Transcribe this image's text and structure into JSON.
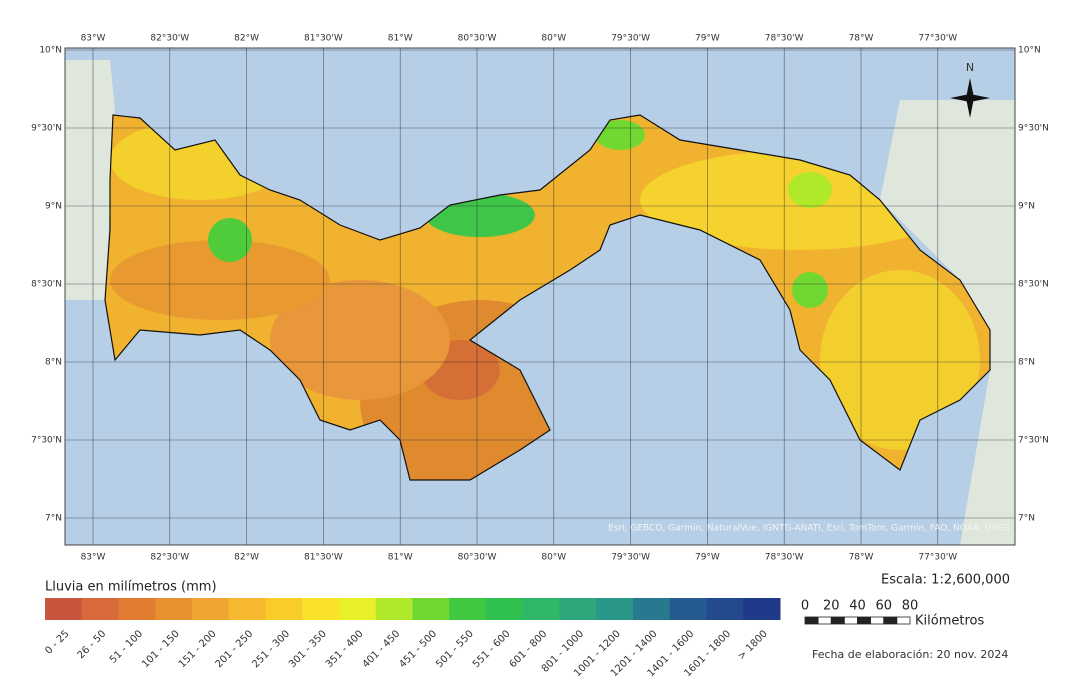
{
  "map": {
    "lon_labels": [
      "83°W",
      "82°30'W",
      "82°W",
      "81°30'W",
      "81°W",
      "80°30'W",
      "80°W",
      "79°30'W",
      "79°W",
      "78°30'W",
      "78°W",
      "77°30'W"
    ],
    "lat_labels": [
      "10°N",
      "9°30'N",
      "9°N",
      "8°30'N",
      "8°N",
      "7°30'N",
      "7°N"
    ],
    "north": "N",
    "attribution": "Esri, GEBCO, Garmin, NaturalVue, IGNTG-ANATI, Esri, TomTom, Garmin, FAO, NOAA, USGS"
  },
  "legend": {
    "title": "Lluvia en milímetros (mm)",
    "classes": [
      {
        "label": "0 - 25",
        "color": "#c8553d"
      },
      {
        "label": "26 - 50",
        "color": "#d8693a"
      },
      {
        "label": "51 - 100",
        "color": "#e07b30"
      },
      {
        "label": "101 - 150",
        "color": "#e89030"
      },
      {
        "label": "151 - 200",
        "color": "#f0a530"
      },
      {
        "label": "201 - 250",
        "color": "#f5b82e"
      },
      {
        "label": "251 - 300",
        "color": "#f9cc2a"
      },
      {
        "label": "301 - 350",
        "color": "#fbe22a"
      },
      {
        "label": "351 - 400",
        "color": "#e8f02a"
      },
      {
        "label": "401 - 450",
        "color": "#b0e82a"
      },
      {
        "label": "451 - 500",
        "color": "#70d830"
      },
      {
        "label": "501 - 550",
        "color": "#40c840"
      },
      {
        "label": "551 - 600",
        "color": "#30c050"
      },
      {
        "label": "601 - 800",
        "color": "#30b868"
      },
      {
        "label": "801 - 1000",
        "color": "#2ea87a"
      },
      {
        "label": "1001 - 1200",
        "color": "#2a9888"
      },
      {
        "label": "1201 - 1400",
        "color": "#287890"
      },
      {
        "label": "1401 - 1600",
        "color": "#255a90"
      },
      {
        "label": "1601 - 1800",
        "color": "#224a8c"
      },
      {
        "label": "> 1800",
        "color": "#1e3a88"
      }
    ]
  },
  "scale": {
    "text": "Escala: 1:2,600,000",
    "ticks": [
      0,
      20,
      40,
      60,
      80
    ],
    "unit": "Kilómetros"
  },
  "date": "Fecha de elaboración: 20 nov. 2024"
}
